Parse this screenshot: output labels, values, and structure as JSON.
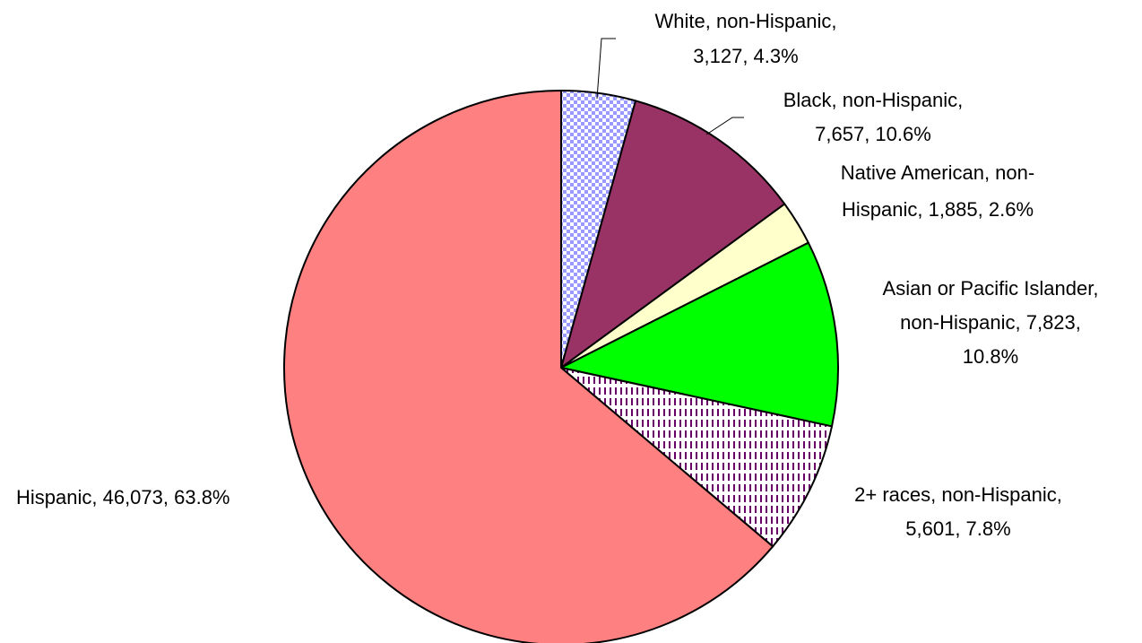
{
  "chart_data": {
    "type": "pie",
    "start_angle": "12 o'clock",
    "direction": "clockwise",
    "slices": [
      {
        "name": "White, non-Hispanic",
        "value": 3127,
        "percent": 4.3,
        "color": "#9999ff",
        "pattern": "checkerboard",
        "label_lines": [
          "White, non-Hispanic,",
          "3,127, 4.3%"
        ]
      },
      {
        "name": "Black, non-Hispanic",
        "value": 7657,
        "percent": 10.6,
        "color": "#993366",
        "pattern": "solid",
        "label_lines": [
          "Black, non-Hispanic,",
          "7,657, 10.6%"
        ]
      },
      {
        "name": "Native American, non-Hispanic",
        "value": 1885,
        "percent": 2.6,
        "color": "#ffffcc",
        "pattern": "solid",
        "label_lines": [
          "Native American, non-",
          "Hispanic, 1,885, 2.6%"
        ]
      },
      {
        "name": "Asian or Pacific Islander, non-Hispanic",
        "value": 7823,
        "percent": 10.8,
        "color": "#00ff00",
        "pattern": "solid",
        "label_lines": [
          "Asian or Pacific Islander,",
          "non-Hispanic, 7,823,",
          "10.8%"
        ]
      },
      {
        "name": "2+ races, non-Hispanic",
        "value": 5601,
        "percent": 7.8,
        "color": "#660066",
        "pattern": "dashed-vertical",
        "label_lines": [
          "2+ races, non-Hispanic,",
          "5,601, 7.8%"
        ]
      },
      {
        "name": "Hispanic",
        "value": 46073,
        "percent": 63.8,
        "color": "#ff8080",
        "pattern": "solid",
        "label_lines": [
          "Hispanic, 46,073, 63.8%"
        ]
      }
    ]
  }
}
